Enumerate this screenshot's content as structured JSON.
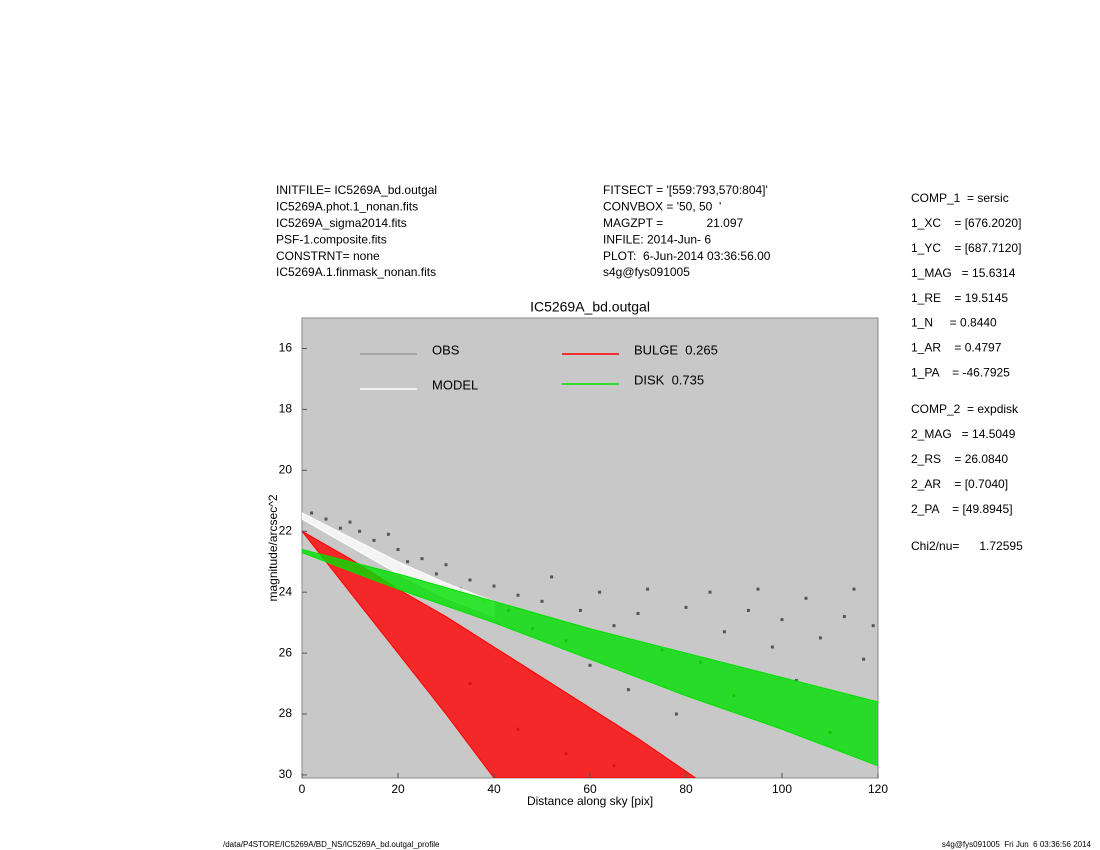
{
  "info": {
    "left": [
      "INITFILE= IC5269A_bd.outgal",
      "IC5269A.phot.1_nonan.fits",
      "IC5269A_sigma2014.fits",
      "PSF-1.composite.fits",
      "CONSTRNT= none",
      "IC5269A.1.finmask_nonan.fits"
    ],
    "middle": [
      "FITSECT = '[559:793,570:804]'",
      "CONVBOX = '50, 50  '",
      "MAGZPT =             21.097",
      "INFILE: 2014-Jun- 6",
      "PLOT:  6-Jun-2014 03:36:56.00",
      "s4g@fys091005"
    ],
    "components": [
      [
        "COMP_1  = sersic",
        "1_XC    = [676.2020]",
        "1_YC    = [687.7120]",
        "1_MAG   = 15.6314",
        "1_RE    = 19.5145",
        "1_N     = 0.8440",
        "1_AR    = 0.4797",
        "1_PA    = -46.7925"
      ],
      [
        "COMP_2  = expdisk",
        "2_MAG   = 14.5049",
        "2_RS    = 26.0840",
        "2_AR    = [0.7040]",
        "2_PA    = [49.8945]"
      ],
      [
        "Chi2/nu=      1.72595"
      ]
    ]
  },
  "footer": {
    "left": "/data/P4STORE/IC5269A/BD_NS/IC5269A_bd.outgal_profile",
    "right": "s4g@fys091005  Fri Jun  6 03:36:56 2014"
  },
  "chart_data": {
    "type": "scatter",
    "title": "IC5269A_bd.outgal",
    "x_label": "Distance along sky [pix]",
    "y_label": "magnitude/arcsec^2",
    "xlim": [
      0,
      120
    ],
    "ylim": [
      30.1,
      15
    ],
    "xticks": [
      0,
      20,
      40,
      60,
      80,
      100,
      120
    ],
    "yticks": [
      16,
      18,
      20,
      22,
      24,
      26,
      28,
      30
    ],
    "background": "#c8c8c8",
    "series": [
      {
        "name": "OBS",
        "type": "scatter",
        "color": "#555555",
        "legend_color": "#999999",
        "x": [
          2,
          5,
          8,
          10,
          12,
          15,
          18,
          20,
          22,
          25,
          28,
          30,
          33,
          35,
          38,
          40,
          43,
          45,
          48,
          50,
          52,
          55,
          58,
          60,
          62,
          65,
          68,
          70,
          72,
          75,
          78,
          80,
          83,
          85,
          88,
          90,
          93,
          95,
          98,
          100,
          103,
          105,
          108,
          110,
          113,
          115,
          117,
          119,
          45,
          55,
          65,
          35
        ],
        "values": [
          21.4,
          21.6,
          21.9,
          21.7,
          22.0,
          22.3,
          22.1,
          22.6,
          23.0,
          22.9,
          23.4,
          23.1,
          23.9,
          23.6,
          24.3,
          23.8,
          24.6,
          24.1,
          25.2,
          24.3,
          23.5,
          25.6,
          24.6,
          26.4,
          24.0,
          25.1,
          27.2,
          24.7,
          23.9,
          25.9,
          28.0,
          24.5,
          26.3,
          24.0,
          25.3,
          27.4,
          24.6,
          23.9,
          25.8,
          24.9,
          26.9,
          24.2,
          25.5,
          28.6,
          24.8,
          23.9,
          26.2,
          25.1,
          28.5,
          29.3,
          29.7,
          27.0
        ]
      },
      {
        "name": "MODEL",
        "type": "band",
        "color": "#ffffff",
        "x": [
          0,
          10,
          20,
          30,
          40
        ],
        "values": [
          21.4,
          22.2,
          23.0,
          23.7,
          24.3
        ],
        "lower": [
          21.6,
          22.5,
          23.4,
          24.2,
          24.8
        ]
      },
      {
        "name": "BULGE  0.265",
        "type": "band",
        "color": "#ff0000",
        "x": [
          0,
          10,
          20,
          30,
          40,
          50,
          60,
          70,
          82
        ],
        "values": [
          22.0,
          22.9,
          23.9,
          24.8,
          25.8,
          26.8,
          27.8,
          28.8,
          30.1
        ],
        "lower": [
          22.0,
          24.0,
          26.0,
          28.0,
          30.1,
          null,
          null,
          null,
          null
        ]
      },
      {
        "name": "DISK  0.735",
        "type": "band",
        "color": "#00e000",
        "x": [
          0,
          20,
          40,
          60,
          80,
          100,
          120
        ],
        "values": [
          22.6,
          23.4,
          24.3,
          25.2,
          26.0,
          26.8,
          27.6
        ],
        "lower": [
          22.7,
          23.9,
          25.0,
          26.2,
          27.4,
          28.5,
          29.7
        ]
      }
    ]
  }
}
